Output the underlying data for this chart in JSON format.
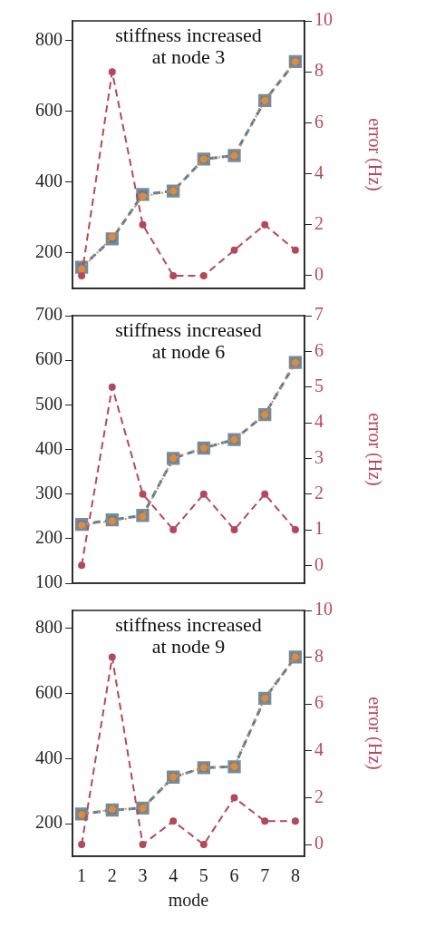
{
  "chart_data": [
    {
      "type": "line",
      "title": "stiffness increased\nat node 3",
      "y2label": "error (Hz)",
      "x": [
        1,
        2,
        3,
        4,
        5,
        6,
        7,
        8
      ],
      "xlim": [
        0.7,
        8.3
      ],
      "xticks": [
        1,
        2,
        3,
        4,
        5,
        6,
        7,
        8
      ],
      "ylim": [
        100,
        855
      ],
      "yticks": [
        200,
        400,
        600,
        800
      ],
      "y2lim": [
        -0.5,
        10
      ],
      "y2ticks": [
        0,
        2,
        4,
        6,
        8,
        10
      ],
      "tick_labels": "y",
      "grid": false,
      "series": [
        {
          "color": "#4f7fa3",
          "marker": "square",
          "line_style": "dashed",
          "values": [
            160,
            240,
            365,
            375,
            465,
            475,
            630,
            740
          ]
        },
        {
          "color": "#e08a3c",
          "marker": "circle",
          "line_style": "dotted",
          "values": [
            155,
            245,
            360,
            375,
            465,
            475,
            630,
            740
          ]
        },
        {
          "color": "#b5485a",
          "marker": "circle",
          "line_style": "dashed",
          "axis": "y2",
          "values": [
            0,
            8,
            2,
            0,
            0,
            1,
            2,
            1
          ]
        }
      ]
    },
    {
      "type": "line",
      "title": "stiffness increased\nat node 6",
      "y2label": "error (Hz)",
      "x": [
        1,
        2,
        3,
        4,
        5,
        6,
        7,
        8
      ],
      "xlim": [
        0.7,
        8.3
      ],
      "xticks": [
        1,
        2,
        3,
        4,
        5,
        6,
        7,
        8
      ],
      "ylim": [
        100,
        700
      ],
      "yticks": [
        100,
        200,
        300,
        400,
        500,
        600,
        700
      ],
      "y2lim": [
        -0.5,
        7
      ],
      "y2ticks": [
        0,
        1,
        2,
        3,
        4,
        5,
        6,
        7
      ],
      "tick_labels": "y",
      "grid": false,
      "series": [
        {
          "color": "#4f7fa3",
          "marker": "square",
          "line_style": "dashed",
          "values": [
            232,
            242,
            252,
            380,
            403,
            422,
            478,
            595
          ]
        },
        {
          "color": "#e08a3c",
          "marker": "circle",
          "line_style": "dotted",
          "values": [
            230,
            240,
            250,
            380,
            403,
            422,
            478,
            595
          ]
        },
        {
          "color": "#b5485a",
          "marker": "circle",
          "line_style": "dashed",
          "axis": "y2",
          "values": [
            0,
            5,
            2,
            1,
            2,
            1,
            2,
            1
          ]
        }
      ]
    },
    {
      "type": "line",
      "title": "stiffness increased\nat node 9",
      "xlabel": "mode",
      "y2label": "error (Hz)",
      "x": [
        1,
        2,
        3,
        4,
        5,
        6,
        7,
        8
      ],
      "xlim": [
        0.7,
        8.3
      ],
      "xticks": [
        1,
        2,
        3,
        4,
        5,
        6,
        7,
        8
      ],
      "ylim": [
        100,
        855
      ],
      "yticks": [
        200,
        400,
        600,
        800
      ],
      "y2lim": [
        -0.5,
        10
      ],
      "y2ticks": [
        0,
        2,
        4,
        6,
        8,
        10
      ],
      "grid": false,
      "series": [
        {
          "color": "#4f7fa3",
          "marker": "square",
          "line_style": "dashed",
          "values": [
            230,
            242,
            248,
            343,
            372,
            375,
            585,
            712
          ]
        },
        {
          "color": "#e08a3c",
          "marker": "circle",
          "line_style": "dotted",
          "values": [
            228,
            244,
            248,
            343,
            372,
            375,
            585,
            712
          ]
        },
        {
          "color": "#b5485a",
          "marker": "circle",
          "line_style": "dashed",
          "axis": "y2",
          "values": [
            0,
            8,
            0,
            1,
            0,
            2,
            1,
            1
          ]
        }
      ]
    }
  ]
}
